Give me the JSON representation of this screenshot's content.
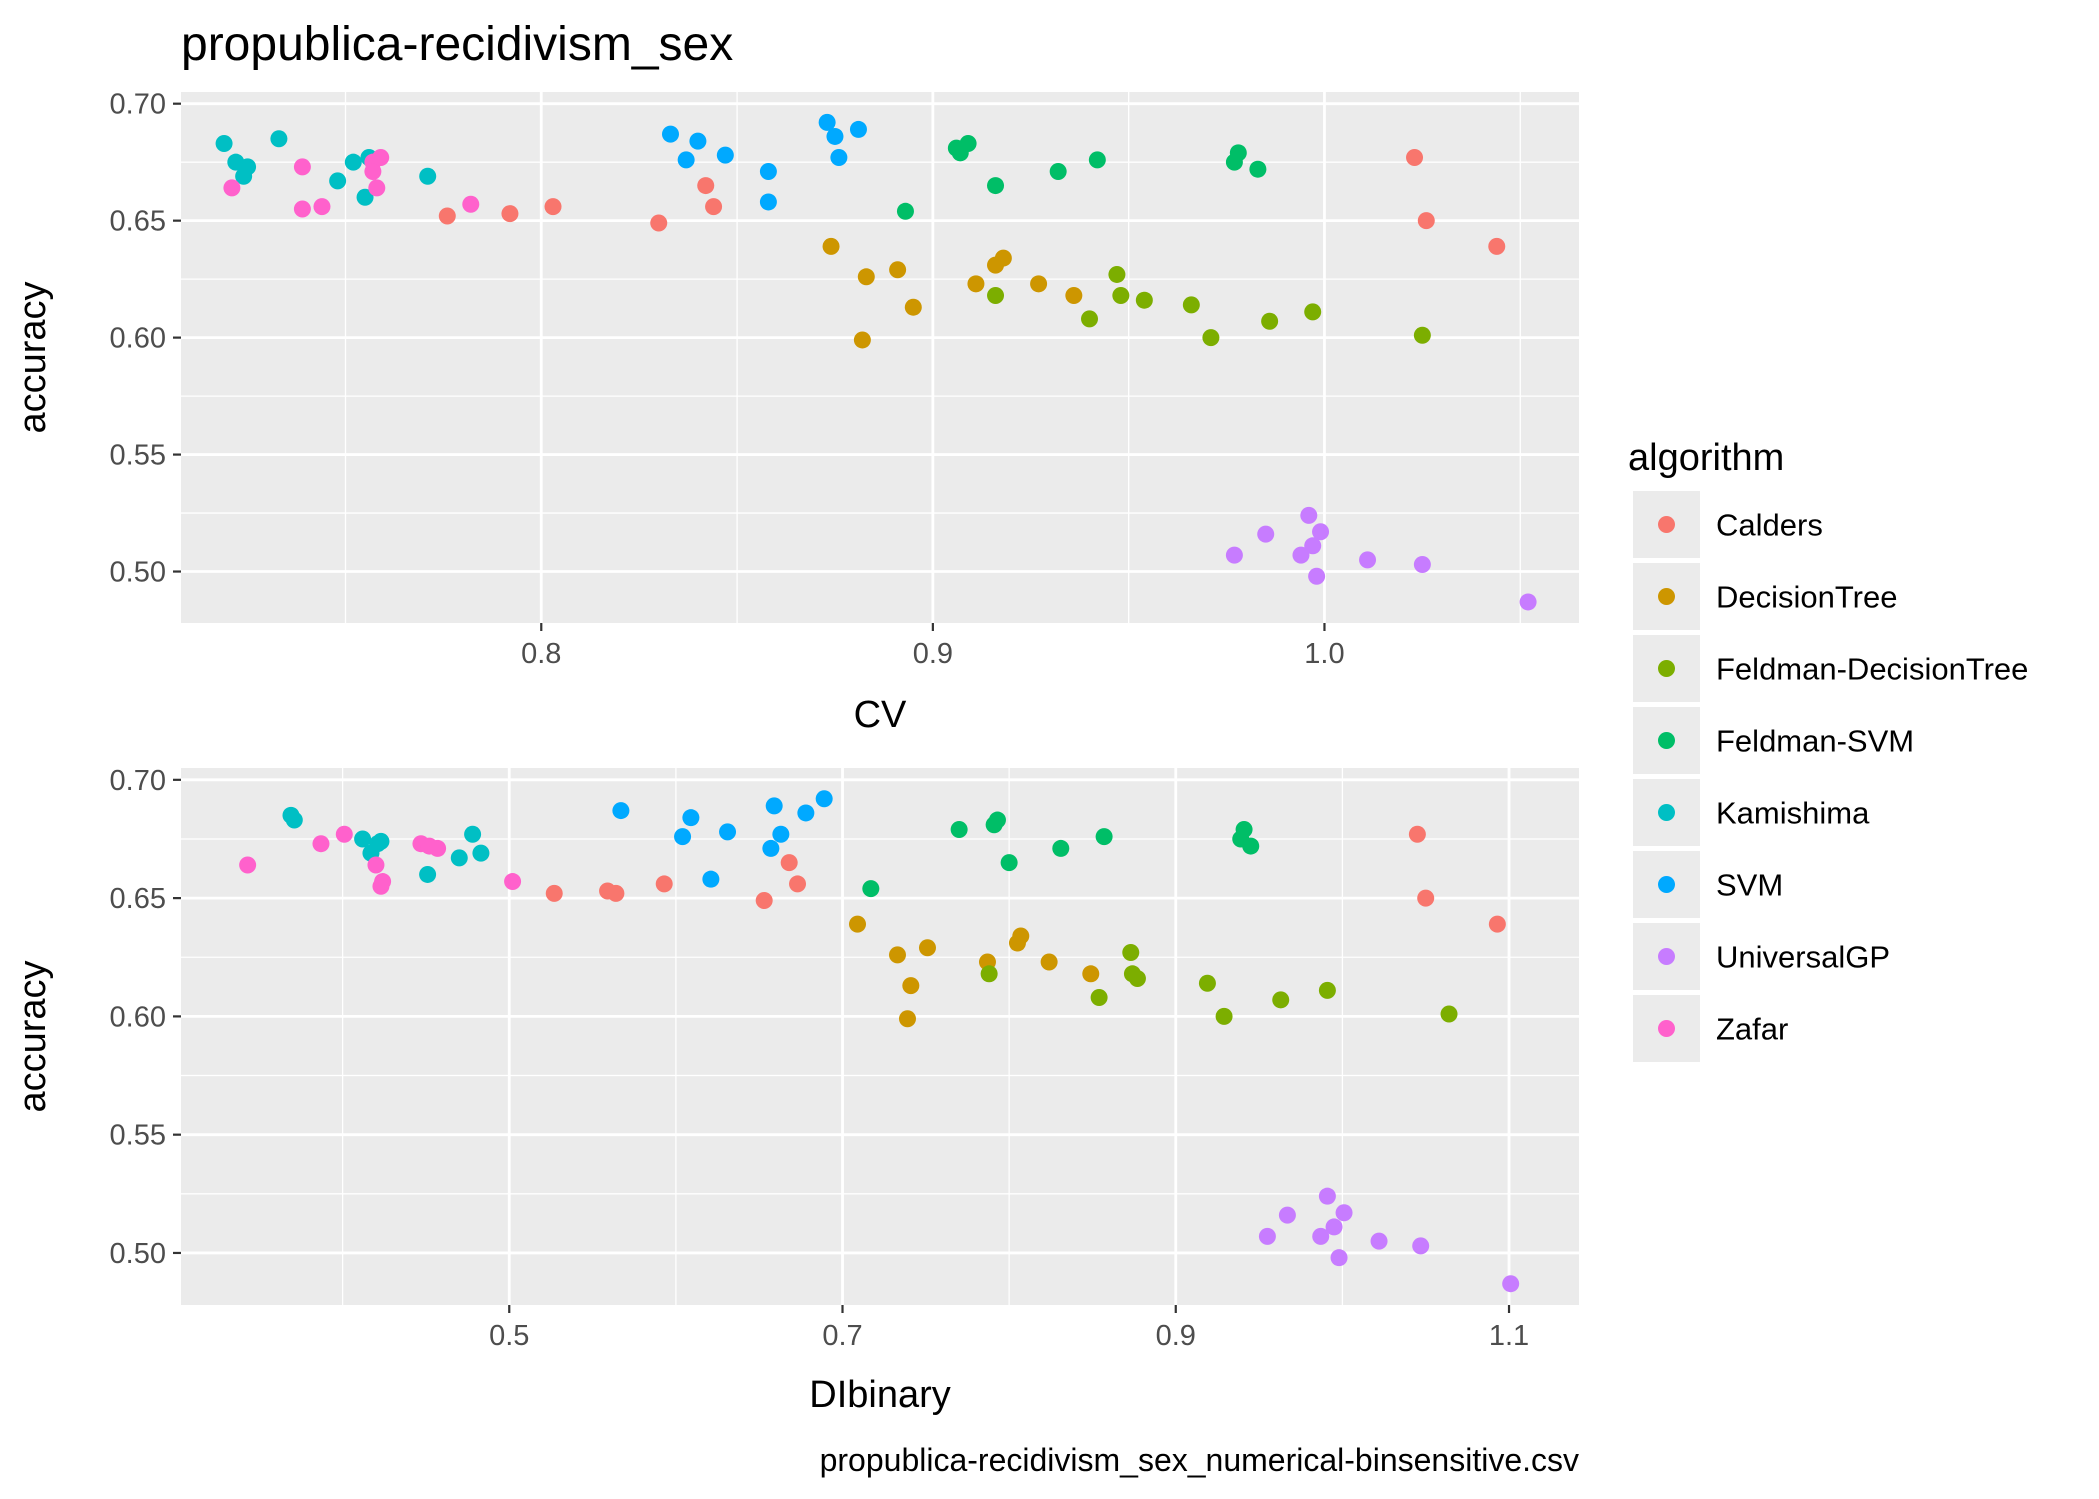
{
  "chart_data": {
    "title": "propublica-recidivism_sex",
    "caption": "propublica-recidivism_sex_numerical-binsensitive.csv",
    "legend": {
      "title": "algorithm",
      "items": [
        {
          "name": "Calders",
          "color": "#F8766D"
        },
        {
          "name": "DecisionTree",
          "color": "#CD9600"
        },
        {
          "name": "Feldman-DecisionTree",
          "color": "#7CAE00"
        },
        {
          "name": "Feldman-SVM",
          "color": "#00BE67"
        },
        {
          "name": "Kamishima",
          "color": "#00BFC4"
        },
        {
          "name": "SVM",
          "color": "#00A9FF"
        },
        {
          "name": "UniversalGP",
          "color": "#C77CFF"
        },
        {
          "name": "Zafar",
          "color": "#FF61CC"
        }
      ]
    },
    "panels": [
      {
        "type": "scatter",
        "xlabel": "CV",
        "ylabel": "accuracy",
        "xlim": [
          0.708,
          1.065
        ],
        "ylim": [
          0.478,
          0.705
        ],
        "xticks": [
          {
            "value": 0.8,
            "label": "0.8"
          },
          {
            "value": 0.9,
            "label": "0.9"
          },
          {
            "value": 1.0,
            "label": "1.0"
          }
        ],
        "yticks": [
          {
            "value": 0.5,
            "label": "0.50"
          },
          {
            "value": 0.55,
            "label": "0.55"
          },
          {
            "value": 0.6,
            "label": "0.60"
          },
          {
            "value": 0.65,
            "label": "0.65"
          },
          {
            "value": 0.7,
            "label": "0.70"
          }
        ],
        "series": [
          {
            "name": "Calders",
            "points": [
              [
                0.776,
                0.652
              ],
              [
                0.792,
                0.653
              ],
              [
                0.803,
                0.656
              ],
              [
                0.83,
                0.649
              ],
              [
                0.842,
                0.665
              ],
              [
                0.844,
                0.656
              ],
              [
                1.023,
                0.677
              ],
              [
                1.026,
                0.65
              ],
              [
                1.044,
                0.639
              ]
            ]
          },
          {
            "name": "DecisionTree",
            "points": [
              [
                0.874,
                0.639
              ],
              [
                0.883,
                0.626
              ],
              [
                0.891,
                0.629
              ],
              [
                0.895,
                0.613
              ],
              [
                0.882,
                0.599
              ],
              [
                0.911,
                0.623
              ],
              [
                0.916,
                0.631
              ],
              [
                0.918,
                0.634
              ],
              [
                0.927,
                0.623
              ],
              [
                0.936,
                0.618
              ]
            ]
          },
          {
            "name": "Feldman-DecisionTree",
            "points": [
              [
                0.916,
                0.618
              ],
              [
                0.94,
                0.608
              ],
              [
                0.947,
                0.627
              ],
              [
                0.948,
                0.618
              ],
              [
                0.954,
                0.616
              ],
              [
                0.966,
                0.614
              ],
              [
                0.971,
                0.6
              ],
              [
                0.986,
                0.607
              ],
              [
                0.997,
                0.611
              ],
              [
                1.025,
                0.601
              ]
            ]
          },
          {
            "name": "Feldman-SVM",
            "points": [
              [
                0.893,
                0.654
              ],
              [
                0.906,
                0.681
              ],
              [
                0.907,
                0.679
              ],
              [
                0.909,
                0.683
              ],
              [
                0.916,
                0.665
              ],
              [
                0.932,
                0.671
              ],
              [
                0.942,
                0.676
              ],
              [
                0.977,
                0.675
              ],
              [
                0.978,
                0.679
              ],
              [
                0.983,
                0.672
              ]
            ]
          },
          {
            "name": "Kamishima",
            "points": [
              [
                0.719,
                0.683
              ],
              [
                0.722,
                0.675
              ],
              [
                0.724,
                0.669
              ],
              [
                0.725,
                0.673
              ],
              [
                0.733,
                0.685
              ],
              [
                0.748,
                0.667
              ],
              [
                0.752,
                0.675
              ],
              [
                0.755,
                0.66
              ],
              [
                0.756,
                0.677
              ],
              [
                0.771,
                0.669
              ]
            ]
          },
          {
            "name": "SVM",
            "points": [
              [
                0.833,
                0.687
              ],
              [
                0.837,
                0.676
              ],
              [
                0.84,
                0.684
              ],
              [
                0.847,
                0.678
              ],
              [
                0.858,
                0.671
              ],
              [
                0.858,
                0.658
              ],
              [
                0.873,
                0.692
              ],
              [
                0.875,
                0.686
              ],
              [
                0.876,
                0.677
              ],
              [
                0.881,
                0.689
              ]
            ]
          },
          {
            "name": "UniversalGP",
            "points": [
              [
                0.977,
                0.507
              ],
              [
                0.985,
                0.516
              ],
              [
                0.994,
                0.507
              ],
              [
                0.996,
                0.524
              ],
              [
                0.997,
                0.511
              ],
              [
                0.999,
                0.517
              ],
              [
                0.998,
                0.498
              ],
              [
                1.011,
                0.505
              ],
              [
                1.025,
                0.503
              ],
              [
                1.052,
                0.487
              ]
            ]
          },
          {
            "name": "Zafar",
            "points": [
              [
                0.721,
                0.664
              ],
              [
                0.739,
                0.673
              ],
              [
                0.739,
                0.655
              ],
              [
                0.744,
                0.656
              ],
              [
                0.757,
                0.675
              ],
              [
                0.757,
                0.671
              ],
              [
                0.758,
                0.664
              ],
              [
                0.759,
                0.677
              ],
              [
                0.782,
                0.657
              ]
            ]
          }
        ]
      },
      {
        "type": "scatter",
        "xlabel": "DIbinary",
        "ylabel": "accuracy",
        "xlim": [
          0.303,
          1.142
        ],
        "ylim": [
          0.478,
          0.705
        ],
        "xticks": [
          {
            "value": 0.5,
            "label": "0.5"
          },
          {
            "value": 0.7,
            "label": "0.7"
          },
          {
            "value": 0.9,
            "label": "0.9"
          },
          {
            "value": 1.1,
            "label": "1.1"
          }
        ],
        "yticks": [
          {
            "value": 0.5,
            "label": "0.50"
          },
          {
            "value": 0.55,
            "label": "0.55"
          },
          {
            "value": 0.6,
            "label": "0.60"
          },
          {
            "value": 0.65,
            "label": "0.65"
          },
          {
            "value": 0.7,
            "label": "0.70"
          }
        ],
        "series": [
          {
            "name": "Calders",
            "points": [
              [
                0.527,
                0.652
              ],
              [
                0.559,
                0.653
              ],
              [
                0.564,
                0.652
              ],
              [
                0.593,
                0.656
              ],
              [
                0.653,
                0.649
              ],
              [
                0.668,
                0.665
              ],
              [
                0.673,
                0.656
              ],
              [
                1.045,
                0.677
              ],
              [
                1.05,
                0.65
              ],
              [
                1.093,
                0.639
              ]
            ]
          },
          {
            "name": "DecisionTree",
            "points": [
              [
                0.709,
                0.639
              ],
              [
                0.733,
                0.626
              ],
              [
                0.741,
                0.613
              ],
              [
                0.739,
                0.599
              ],
              [
                0.751,
                0.629
              ],
              [
                0.787,
                0.623
              ],
              [
                0.805,
                0.631
              ],
              [
                0.807,
                0.634
              ],
              [
                0.824,
                0.623
              ],
              [
                0.849,
                0.618
              ]
            ]
          },
          {
            "name": "Feldman-DecisionTree",
            "points": [
              [
                0.788,
                0.618
              ],
              [
                0.854,
                0.608
              ],
              [
                0.873,
                0.627
              ],
              [
                0.874,
                0.618
              ],
              [
                0.877,
                0.616
              ],
              [
                0.919,
                0.614
              ],
              [
                0.929,
                0.6
              ],
              [
                0.963,
                0.607
              ],
              [
                0.991,
                0.611
              ],
              [
                1.064,
                0.601
              ]
            ]
          },
          {
            "name": "Feldman-SVM",
            "points": [
              [
                0.717,
                0.654
              ],
              [
                0.77,
                0.679
              ],
              [
                0.791,
                0.681
              ],
              [
                0.793,
                0.683
              ],
              [
                0.8,
                0.665
              ],
              [
                0.831,
                0.671
              ],
              [
                0.857,
                0.676
              ],
              [
                0.939,
                0.675
              ],
              [
                0.941,
                0.679
              ],
              [
                0.945,
                0.672
              ]
            ]
          },
          {
            "name": "Kamishima",
            "points": [
              [
                0.369,
                0.685
              ],
              [
                0.371,
                0.683
              ],
              [
                0.412,
                0.675
              ],
              [
                0.417,
                0.669
              ],
              [
                0.421,
                0.673
              ],
              [
                0.423,
                0.674
              ],
              [
                0.451,
                0.66
              ],
              [
                0.47,
                0.667
              ],
              [
                0.478,
                0.677
              ],
              [
                0.483,
                0.669
              ]
            ]
          },
          {
            "name": "SVM",
            "points": [
              [
                0.567,
                0.687
              ],
              [
                0.604,
                0.676
              ],
              [
                0.609,
                0.684
              ],
              [
                0.621,
                0.658
              ],
              [
                0.631,
                0.678
              ],
              [
                0.657,
                0.671
              ],
              [
                0.659,
                0.689
              ],
              [
                0.663,
                0.677
              ],
              [
                0.678,
                0.686
              ],
              [
                0.689,
                0.692
              ]
            ]
          },
          {
            "name": "UniversalGP",
            "points": [
              [
                0.955,
                0.507
              ],
              [
                0.967,
                0.516
              ],
              [
                0.987,
                0.507
              ],
              [
                0.991,
                0.524
              ],
              [
                0.995,
                0.511
              ],
              [
                1.001,
                0.517
              ],
              [
                0.998,
                0.498
              ],
              [
                1.022,
                0.505
              ],
              [
                1.047,
                0.503
              ],
              [
                1.101,
                0.487
              ]
            ]
          },
          {
            "name": "Zafar",
            "points": [
              [
                0.343,
                0.664
              ],
              [
                0.387,
                0.673
              ],
              [
                0.401,
                0.677
              ],
              [
                0.42,
                0.664
              ],
              [
                0.423,
                0.655
              ],
              [
                0.424,
                0.657
              ],
              [
                0.447,
                0.673
              ],
              [
                0.452,
                0.672
              ],
              [
                0.457,
                0.671
              ],
              [
                0.502,
                0.657
              ]
            ]
          }
        ]
      }
    ]
  }
}
